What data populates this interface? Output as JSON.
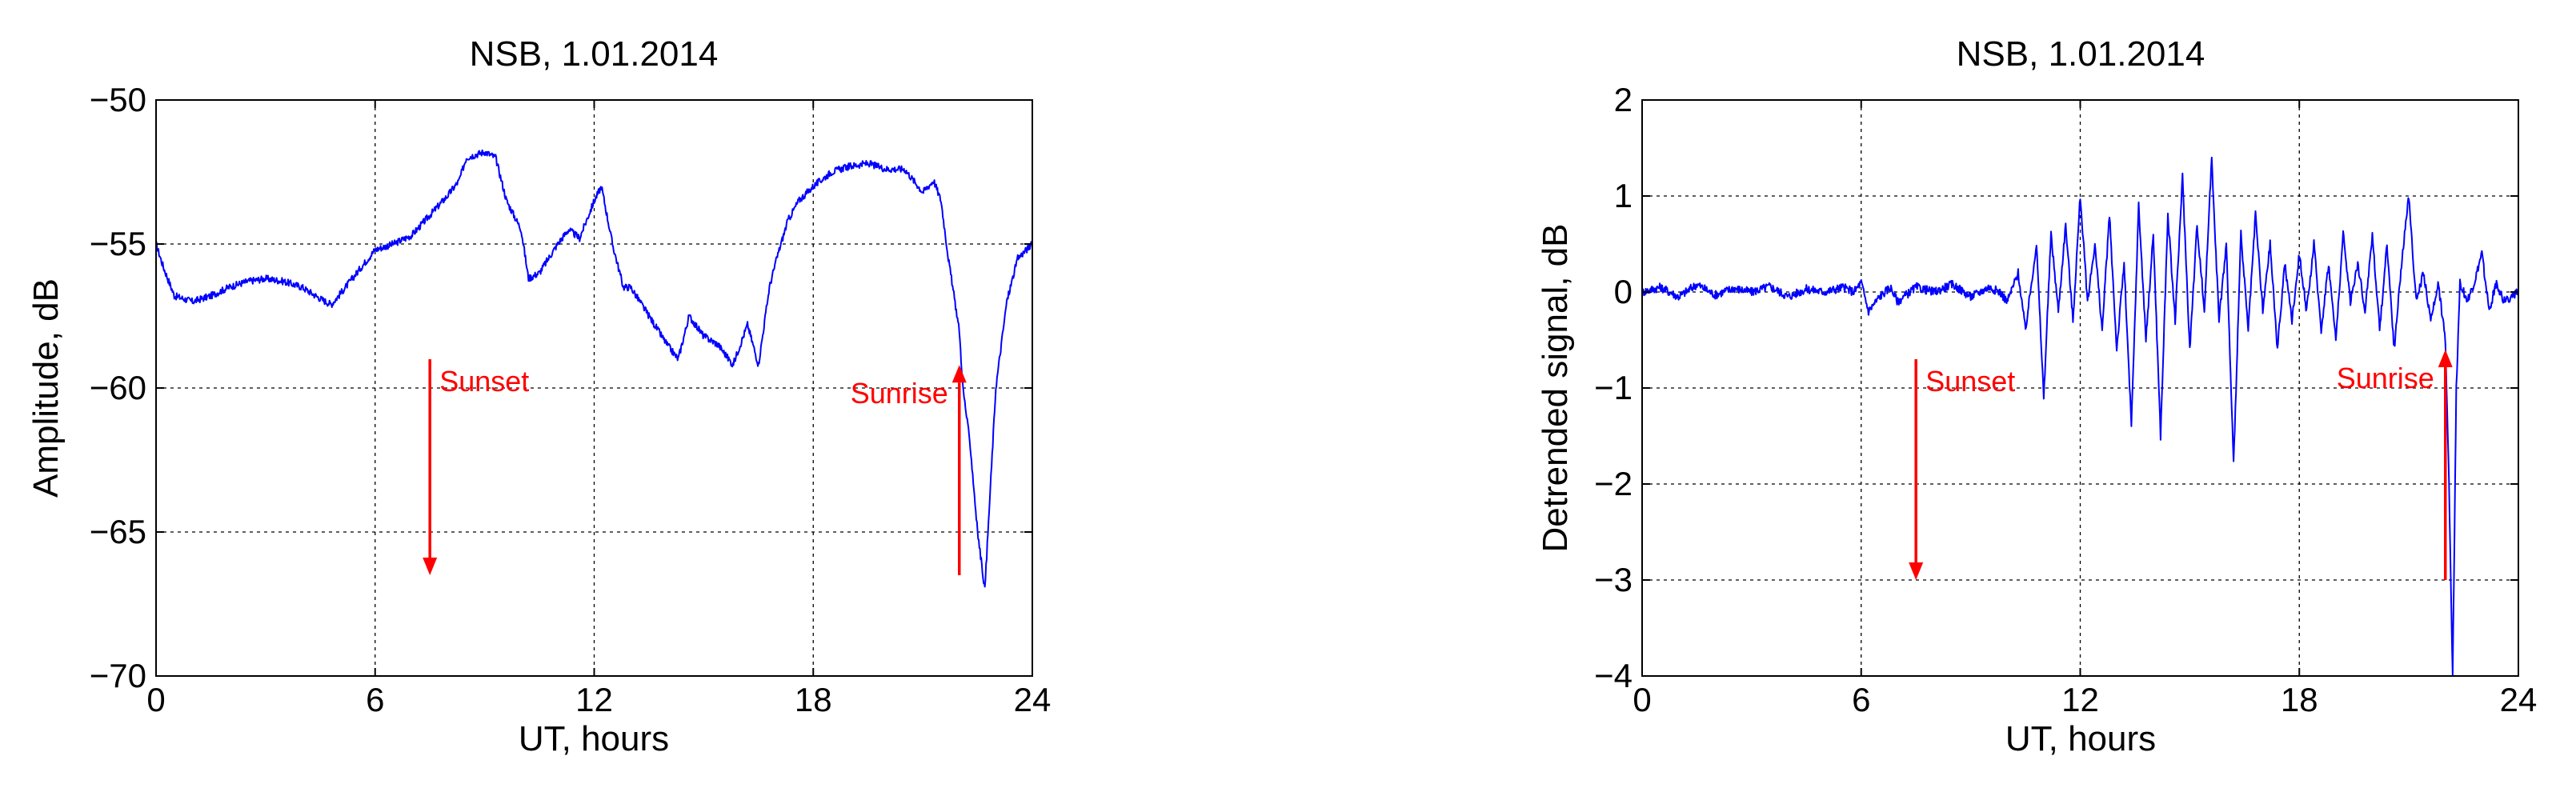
{
  "colors": {
    "signal": "#0000ff",
    "annotation": "#ff0000"
  },
  "chart_data": [
    {
      "type": "line",
      "title": "NSB, 1.01.2014",
      "xlabel": "UT, hours",
      "ylabel": "Amplitude, dB",
      "xlim": [
        0,
        24
      ],
      "ylim": [
        -70,
        -50
      ],
      "xticks": [
        0,
        6,
        12,
        18,
        24
      ],
      "yticks": [
        -50,
        -55,
        -60,
        -65,
        -70
      ],
      "xtick_labels": [
        "0",
        "6",
        "12",
        "18",
        "24"
      ],
      "ytick_labels": [
        "−50",
        "−55",
        "−60",
        "−65",
        "−70"
      ],
      "grid": true,
      "series": [
        {
          "x": [
            0,
            0.2,
            0.5,
            1,
            1.5,
            2,
            2.5,
            3,
            3.5,
            4,
            4.5,
            4.8,
            5,
            5.5,
            6,
            6.5,
            7,
            7.5,
            8,
            8.3,
            8.5,
            9,
            9.3,
            9.6,
            10,
            10.2,
            10.5,
            11,
            11.3,
            11.6,
            12,
            12.2,
            12.5,
            12.8,
            13,
            13.5,
            14,
            14.3,
            14.6,
            15,
            15.4,
            15.8,
            16.2,
            16.5,
            16.8,
            17,
            17.3,
            17.6,
            18,
            18.5,
            19,
            19.5,
            20,
            20.5,
            21,
            21.3,
            21.5,
            21.7,
            22,
            22.1,
            22.3,
            22.5,
            22.7,
            23,
            23.3,
            23.6,
            24
          ],
          "y": [
            -55,
            -55.8,
            -56.8,
            -57,
            -56.8,
            -56.5,
            -56.3,
            -56.2,
            -56.3,
            -56.5,
            -56.9,
            -57.1,
            -56.8,
            -56,
            -55.2,
            -55,
            -54.7,
            -54,
            -53.3,
            -52.8,
            -52,
            -51.8,
            -52,
            -53.5,
            -54.5,
            -56.2,
            -56,
            -55,
            -54.5,
            -54.8,
            -53.5,
            -53,
            -55,
            -56.5,
            -56.5,
            -57.5,
            -58.5,
            -59,
            -57.5,
            -58.2,
            -58.5,
            -59.2,
            -57.8,
            -59.2,
            -56.5,
            -55.5,
            -54.2,
            -53.5,
            -53,
            -52.5,
            -52.3,
            -52.2,
            -52.4,
            -52.4,
            -53.2,
            -52.8,
            -53.5,
            -55.5,
            -58,
            -60,
            -62,
            -65,
            -67,
            -60,
            -57,
            -55.5,
            -55
          ]
        }
      ],
      "annotations": [
        {
          "text": "Sunset",
          "x": 7.5,
          "direction": "down",
          "y_from": -59,
          "y_to": -66.5
        },
        {
          "text": "Sunrise",
          "x": 22,
          "direction": "up",
          "y_from": -66.5,
          "y_to": -59.2
        }
      ]
    },
    {
      "type": "line",
      "title": "NSB, 1.01.2014",
      "xlabel": "UT, hours",
      "ylabel": "Detrended signal, dB",
      "xlim": [
        0,
        24
      ],
      "ylim": [
        -4,
        2
      ],
      "xticks": [
        0,
        6,
        12,
        18,
        24
      ],
      "yticks": [
        2,
        1,
        0,
        -1,
        -2,
        -3,
        -4
      ],
      "xtick_labels": [
        "0",
        "6",
        "12",
        "18",
        "24"
      ],
      "ytick_labels": [
        "2",
        "1",
        "0",
        "−1",
        "−2",
        "−3",
        "−4"
      ],
      "grid": true,
      "series": [
        {
          "x": [
            0,
            0.5,
            1,
            1.5,
            2,
            2.5,
            3,
            3.5,
            4,
            4.5,
            5,
            5.5,
            5.8,
            6,
            6.2,
            6.5,
            6.8,
            7,
            7.5,
            8,
            8.5,
            9,
            9.5,
            9.8,
            10,
            10.3,
            10.5,
            10.8,
            11,
            11.2,
            11.4,
            11.6,
            11.8,
            12,
            12.2,
            12.4,
            12.6,
            12.8,
            13,
            13.2,
            13.4,
            13.6,
            13.8,
            14,
            14.2,
            14.4,
            14.6,
            14.8,
            15,
            15.2,
            15.4,
            15.6,
            15.8,
            16,
            16.2,
            16.4,
            16.6,
            16.8,
            17,
            17.2,
            17.4,
            17.6,
            17.8,
            18,
            18.2,
            18.4,
            18.6,
            18.8,
            19,
            19.2,
            19.4,
            19.6,
            19.8,
            20,
            20.2,
            20.4,
            20.6,
            20.8,
            21,
            21.2,
            21.4,
            21.6,
            21.8,
            22,
            22.1,
            22.2,
            22.3,
            22.4,
            22.6,
            22.8,
            23,
            23.2,
            23.4,
            23.6,
            24
          ],
          "y": [
            0,
            0.05,
            -0.05,
            0.08,
            -0.03,
            0.04,
            0,
            0.06,
            -0.05,
            0.03,
            0,
            0.05,
            0,
            0.1,
            -0.2,
            -0.05,
            0.05,
            -0.1,
            0.05,
            0,
            0.08,
            -0.05,
            0.05,
            0,
            -0.1,
            0.2,
            -0.4,
            0.5,
            -1.1,
            0.6,
            -0.2,
            0.7,
            -0.3,
            1,
            -0.1,
            0.5,
            -0.4,
            0.8,
            -0.6,
            0.3,
            -1.4,
            0.9,
            -0.5,
            0.6,
            -1.5,
            0.8,
            -0.3,
            1.2,
            -0.6,
            0.7,
            -0.2,
            1.4,
            -0.3,
            0.5,
            -1.8,
            0.6,
            -0.4,
            0.8,
            -0.2,
            0.5,
            -0.6,
            0.3,
            -0.3,
            0.4,
            -0.2,
            0.5,
            -0.4,
            0.3,
            -0.5,
            0.6,
            -0.1,
            0.3,
            -0.2,
            0.6,
            -0.4,
            0.5,
            -0.6,
            0.3,
            1,
            -0.1,
            0.2,
            -0.3,
            0.1,
            -0.5,
            -2,
            -4,
            -1,
            0.1,
            -0.1,
            0.1,
            0.4,
            -0.2,
            0.1,
            -0.1,
            0
          ]
        }
      ],
      "annotations": [
        {
          "text": "Sunset",
          "x": 7.5,
          "direction": "down",
          "y_from": -0.7,
          "y_to": -3
        },
        {
          "text": "Sunrise",
          "x": 22,
          "direction": "up",
          "y_from": -3,
          "y_to": -0.6
        }
      ]
    }
  ]
}
